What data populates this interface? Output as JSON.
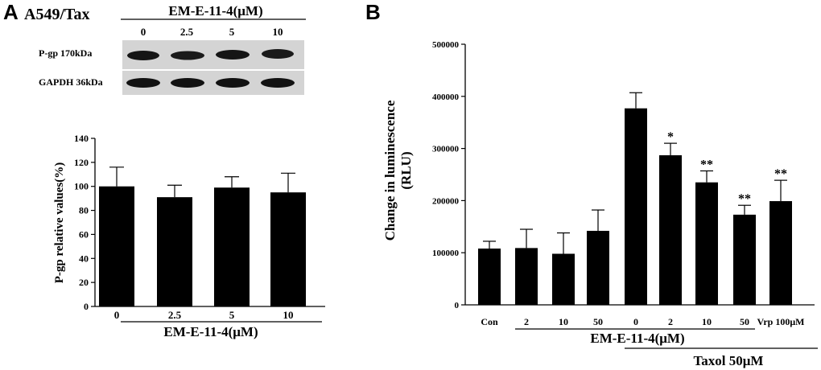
{
  "panel_a": {
    "letter": "A",
    "cell_line": "A549/Tax",
    "blot": {
      "treatment_label": "EM-E-11-4(μM)",
      "lanes": [
        "0",
        "2.5",
        "5",
        "10"
      ],
      "rows": [
        "P-gp 170kDa",
        "GAPDH 36kDa"
      ]
    }
  },
  "panel_b": {
    "letter": "B"
  },
  "chart_data": [
    {
      "type": "bar",
      "panel": "A",
      "categories": [
        "0",
        "2.5",
        "5",
        "10"
      ],
      "values": [
        100,
        91,
        99,
        95
      ],
      "errors": [
        16,
        10,
        9,
        16
      ],
      "ylabel": "P-gp relative values(%)",
      "xlabel": "EM-E-11-4(μM)",
      "ylim": [
        0,
        140
      ],
      "yticks": [
        0,
        20,
        40,
        60,
        80,
        100,
        120,
        140
      ],
      "bar_color": "#000000"
    },
    {
      "type": "bar",
      "panel": "B",
      "categories": [
        "Con",
        "2",
        "10",
        "50",
        "0",
        "2",
        "10",
        "50",
        "Vrp 100μM"
      ],
      "values": [
        108000,
        109000,
        98000,
        142000,
        377000,
        287000,
        235000,
        173000,
        199000
      ],
      "errors": [
        14000,
        36000,
        40000,
        40000,
        30000,
        23000,
        22000,
        18000,
        40000
      ],
      "significance": [
        "",
        "",
        "",
        "",
        "",
        "*",
        "**",
        "**",
        "**"
      ],
      "ylabel_line1": "Change in luminescence",
      "ylabel_line2": "(RLU)",
      "group_label_1": "EM-E-11-4(μM)",
      "group_label_2": "Taxol 50μM",
      "ylim": [
        0,
        500000
      ],
      "yticks": [
        0,
        100000,
        200000,
        300000,
        400000,
        500000
      ],
      "bar_color": "#000000"
    }
  ]
}
